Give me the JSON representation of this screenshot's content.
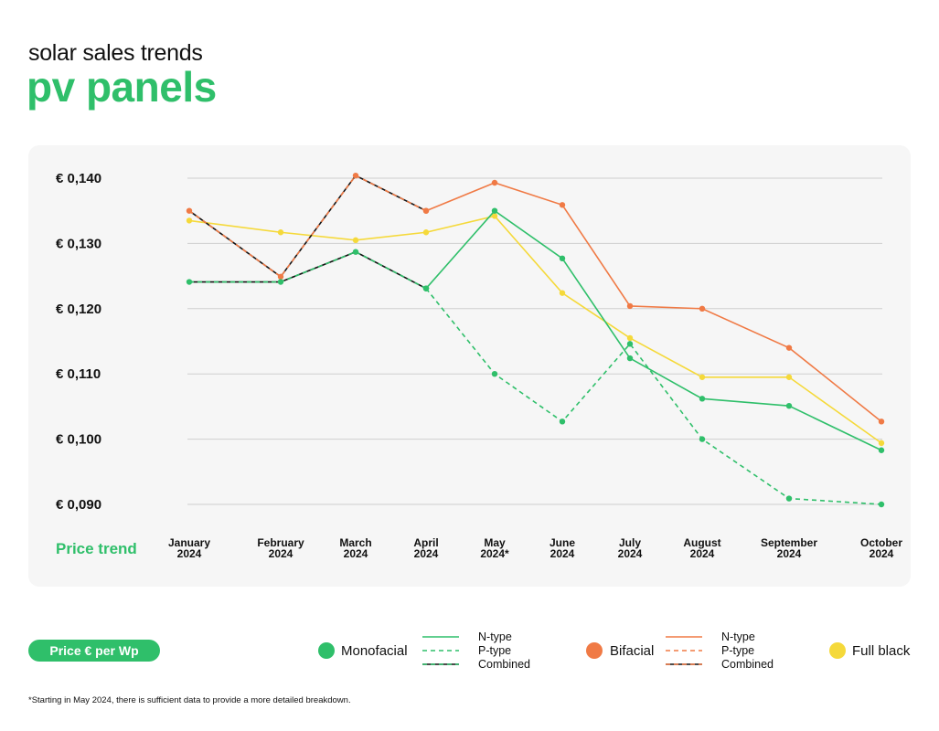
{
  "header": {
    "subtitle": "solar sales trends",
    "title": "pv panels"
  },
  "colors": {
    "green": "#2fbf6a",
    "orange": "#f07a45",
    "yellow": "#f5d93a",
    "black": "#111111",
    "grid": "#cfcfcf",
    "panel_bg": "#f6f6f6"
  },
  "chart_data": {
    "type": "line",
    "x_axis_label": "Price trend",
    "categories": [
      [
        "January",
        "2024"
      ],
      [
        "February",
        "2024"
      ],
      [
        "March",
        "2024"
      ],
      [
        "April",
        "2024"
      ],
      [
        "May",
        "2024*"
      ],
      [
        "June",
        "2024"
      ],
      [
        "July",
        "2024"
      ],
      [
        "August",
        "2024"
      ],
      [
        "September",
        "2024"
      ],
      [
        "October",
        "2024"
      ]
    ],
    "y_ticks": [
      "€ 0,140",
      "€ 0,130",
      "€ 0,120",
      "€ 0,110",
      "€ 0,100",
      "€ 0,090"
    ],
    "y_tick_values": [
      0.14,
      0.13,
      0.12,
      0.11,
      0.1,
      0.09
    ],
    "ylim": [
      0.09,
      0.14
    ],
    "grid": true,
    "series": [
      {
        "group": "Monofacial",
        "name": "N-type",
        "color": "green",
        "dash": "solid",
        "values": [
          null,
          null,
          null,
          0.1231,
          0.135,
          0.1277,
          0.1124,
          0.1062,
          0.1051,
          0.0983
        ]
      },
      {
        "group": "Monofacial",
        "name": "P-type",
        "color": "green",
        "dash": "dashed",
        "values": [
          null,
          null,
          null,
          0.1231,
          0.11,
          0.1027,
          0.1146,
          0.1,
          0.0909,
          0.09
        ]
      },
      {
        "group": "Monofacial",
        "name": "Combined",
        "color": "green",
        "dash": "combined",
        "values": [
          0.1241,
          0.1241,
          0.1287,
          0.1231,
          null,
          null,
          null,
          null,
          null,
          null
        ]
      },
      {
        "group": "Bifacial",
        "name": "N-type",
        "color": "orange",
        "dash": "solid",
        "values": [
          null,
          null,
          null,
          0.135,
          0.1393,
          0.1359,
          0.1204,
          0.12,
          0.114,
          0.1027
        ]
      },
      {
        "group": "Bifacial",
        "name": "P-type",
        "color": "orange",
        "dash": "dashed",
        "values": [
          null,
          null,
          null,
          null,
          null,
          null,
          null,
          null,
          null,
          null
        ]
      },
      {
        "group": "Bifacial",
        "name": "Combined",
        "color": "orange",
        "dash": "combined",
        "values": [
          0.135,
          0.1249,
          0.1404,
          0.135,
          null,
          null,
          null,
          null,
          null,
          null
        ]
      },
      {
        "group": "Full black",
        "name": "",
        "color": "yellow",
        "dash": "solid",
        "values": [
          0.1335,
          0.1317,
          0.1305,
          0.1317,
          0.1342,
          0.1224,
          0.1155,
          0.1095,
          0.1095,
          0.0994
        ]
      }
    ]
  },
  "legend": {
    "unit_label": "Price € per Wp",
    "monofacial": "Monofacial",
    "bifacial": "Bifacial",
    "full_black": "Full black",
    "n_type": "N-type",
    "p_type": "P-type",
    "combined": "Combined"
  },
  "footnote": "*Starting in May 2024, there is sufficient data to provide a more detailed breakdown."
}
